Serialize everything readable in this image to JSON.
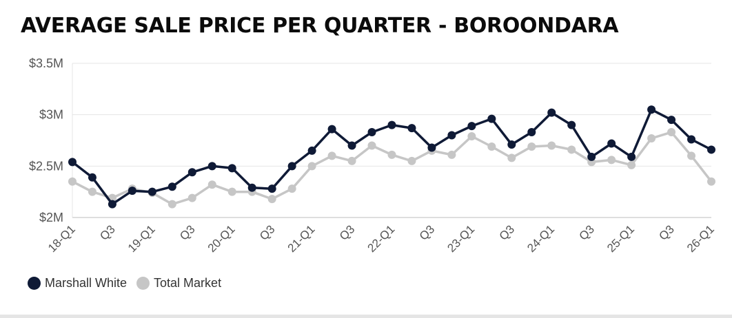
{
  "title": "AVERAGE SALE PRICE PER QUARTER - BOROONDARA",
  "chart_data": {
    "type": "line",
    "title": "AVERAGE SALE PRICE PER QUARTER - BOROONDARA",
    "xlabel": "",
    "ylabel": "",
    "ylim": [
      2000000,
      3500000
    ],
    "yticks": [
      2000000,
      2500000,
      3000000,
      3500000
    ],
    "ytick_labels": [
      "$2M",
      "$2.5M",
      "$3M",
      "$3.5M"
    ],
    "x": [
      "18-Q1",
      "18-Q2",
      "18-Q3",
      "18-Q4",
      "19-Q1",
      "19-Q2",
      "19-Q3",
      "19-Q4",
      "20-Q1",
      "20-Q2",
      "20-Q3",
      "20-Q4",
      "21-Q1",
      "21-Q2",
      "21-Q3",
      "21-Q4",
      "22-Q1",
      "22-Q2",
      "22-Q3",
      "22-Q4",
      "23-Q1",
      "23-Q2",
      "23-Q3",
      "23-Q4",
      "24-Q1",
      "24-Q2",
      "24-Q3",
      "24-Q4",
      "25-Q1",
      "25-Q2",
      "25-Q3",
      "25-Q4",
      "26-Q1"
    ],
    "xtick_labels": [
      "18-Q1",
      "",
      "Q3",
      "",
      "19-Q1",
      "",
      "Q3",
      "",
      "20-Q1",
      "",
      "Q3",
      "",
      "21-Q1",
      "",
      "Q3",
      "",
      "22-Q1",
      "",
      "Q3",
      "",
      "23-Q1",
      "",
      "Q3",
      "",
      "24-Q1",
      "",
      "Q3",
      "",
      "25-Q1",
      "",
      "Q3",
      "",
      "26-Q1"
    ],
    "grid": true,
    "legend_position": "bottom-left",
    "series": [
      {
        "name": "Marshall White",
        "color": "#0f1a36",
        "values": [
          2540000,
          2390000,
          2130000,
          2260000,
          2250000,
          2300000,
          2440000,
          2500000,
          2480000,
          2290000,
          2280000,
          2500000,
          2650000,
          2860000,
          2700000,
          2830000,
          2900000,
          2870000,
          2680000,
          2800000,
          2890000,
          2960000,
          2710000,
          2830000,
          3020000,
          2900000,
          2590000,
          2720000,
          2590000,
          3050000,
          2950000,
          2760000,
          2660000
        ]
      },
      {
        "name": "Total Market",
        "color": "#c6c6c6",
        "values": [
          2350000,
          2250000,
          2190000,
          2280000,
          2240000,
          2130000,
          2190000,
          2320000,
          2250000,
          2250000,
          2180000,
          2280000,
          2500000,
          2600000,
          2550000,
          2700000,
          2610000,
          2550000,
          2650000,
          2610000,
          2790000,
          2690000,
          2580000,
          2690000,
          2700000,
          2660000,
          2540000,
          2560000,
          2510000,
          2770000,
          2830000,
          2600000,
          2350000
        ]
      }
    ]
  }
}
